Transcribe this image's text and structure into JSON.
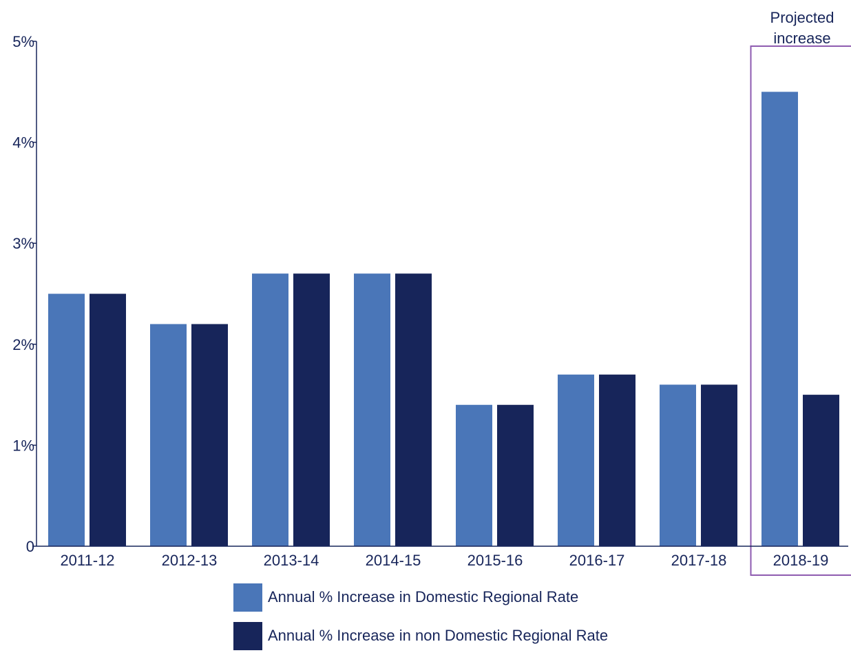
{
  "chart_data": {
    "type": "bar",
    "categories": [
      "2011-12",
      "2012-13",
      "2013-14",
      "2014-15",
      "2015-16",
      "2016-17",
      "2017-18",
      "2018-19"
    ],
    "series": [
      {
        "name": "Annual % Increase in Domestic Regional Rate",
        "color": "#4a76b8",
        "values": [
          2.5,
          2.2,
          2.7,
          2.7,
          1.4,
          1.7,
          1.6,
          4.5
        ]
      },
      {
        "name": "Annual % Increase in non Domestic Regional Rate",
        "color": "#17255a",
        "values": [
          2.5,
          2.2,
          2.7,
          2.7,
          1.4,
          1.7,
          1.6,
          1.5
        ]
      }
    ],
    "ylim": [
      0,
      5
    ],
    "yticks": [
      0,
      1,
      2,
      3,
      4,
      5
    ],
    "ytick_labels": [
      "0",
      "1%",
      "2%",
      "3%",
      "4%",
      "5%"
    ],
    "title": "",
    "xlabel": "",
    "ylabel": "",
    "grid": false,
    "legend_position": "bottom-center",
    "annotation": {
      "text_lines": [
        "Projected",
        "increase"
      ],
      "category": "2018-19",
      "box_color": "#8e5bb0"
    },
    "axis_color": "#17255a",
    "text_color": "#17255a"
  }
}
